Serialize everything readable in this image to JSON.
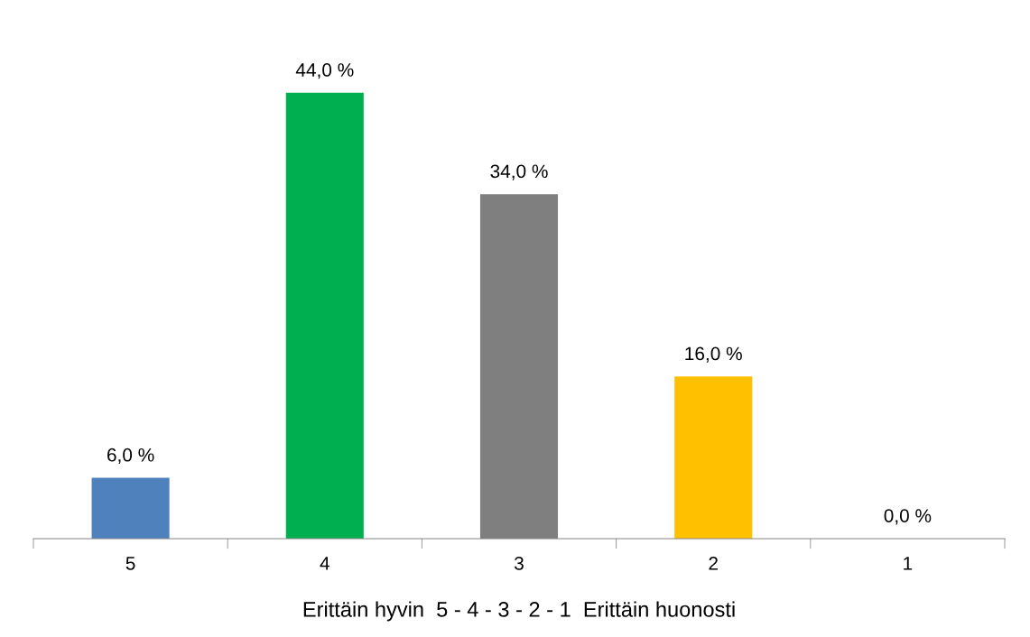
{
  "chart_data": {
    "type": "bar",
    "xlabel": "Erittäin hyvin  5 - 4 - 3 - 2 - 1  Erittäin huonosti",
    "categories": [
      "5",
      "4",
      "3",
      "2",
      "1"
    ],
    "values": [
      6.0,
      44.0,
      34.0,
      16.0,
      0.0
    ],
    "colors": [
      "#4f81bd",
      "#00b050",
      "#7f7f7f",
      "#ffc000",
      "#c0504d"
    ],
    "value_labels": [
      "6,0 %",
      "44,0 %",
      "34,0 %",
      "16,0 %",
      "0,0 %"
    ],
    "grid": false,
    "legend": false
  }
}
